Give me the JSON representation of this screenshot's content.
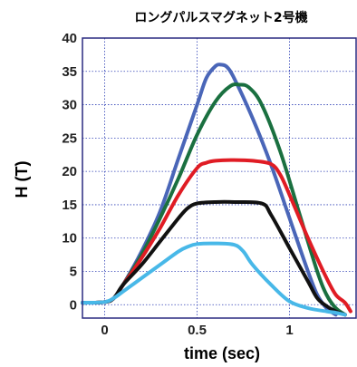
{
  "chart_data": {
    "type": "line",
    "title": "ロングパルスマグネット2号機",
    "xlabel": "time (sec)",
    "ylabel": "H (T)",
    "xlim": [
      -0.12,
      1.36
    ],
    "ylim": [
      -2,
      40
    ],
    "xticks": [
      "0",
      "0.5",
      "1"
    ],
    "xtick_values": [
      0,
      0.5,
      1
    ],
    "yticks": [
      "0",
      "5",
      "10",
      "15",
      "20",
      "25",
      "30",
      "35",
      "40"
    ],
    "ytick_values": [
      0,
      5,
      10,
      15,
      20,
      25,
      30,
      35,
      40
    ],
    "grid": true,
    "series": [
      {
        "color": "#4a66b8",
        "x": [
          -0.12,
          0,
          0.05,
          0.1,
          0.2,
          0.3,
          0.4,
          0.5,
          0.55,
          0.6,
          0.63,
          0.66,
          0.7,
          0.8,
          0.9,
          1.0,
          1.1,
          1.15,
          1.2,
          1.25
        ],
        "y": [
          0.3,
          0.4,
          1.0,
          3.0,
          8.0,
          14.0,
          22.0,
          30.0,
          34.0,
          35.8,
          36.0,
          35.7,
          34.0,
          28.0,
          21.0,
          13.0,
          5.0,
          1.5,
          -0.5,
          -1.5
        ]
      },
      {
        "color": "#1a7040",
        "x": [
          -0.12,
          0,
          0.05,
          0.1,
          0.2,
          0.3,
          0.4,
          0.5,
          0.6,
          0.68,
          0.73,
          0.78,
          0.85,
          0.95,
          1.05,
          1.15,
          1.2,
          1.25,
          1.3
        ],
        "y": [
          0.3,
          0.4,
          1.0,
          3.0,
          7.5,
          13.0,
          19.0,
          25.5,
          30.5,
          32.8,
          33.0,
          32.6,
          30.0,
          23.0,
          14.0,
          5.0,
          1.5,
          -0.5,
          -1.5
        ]
      },
      {
        "color": "#e01c24",
        "x": [
          -0.12,
          0,
          0.05,
          0.1,
          0.2,
          0.3,
          0.4,
          0.5,
          0.55,
          0.6,
          0.7,
          0.8,
          0.9,
          0.95,
          1.0,
          1.1,
          1.2,
          1.25,
          1.3,
          1.33
        ],
        "y": [
          0.3,
          0.4,
          1.0,
          3.0,
          7.0,
          11.5,
          16.5,
          20.5,
          21.3,
          21.6,
          21.7,
          21.6,
          21.1,
          19.5,
          16.5,
          10.0,
          4.0,
          1.5,
          0.3,
          -1.0
        ]
      },
      {
        "color": "#111111",
        "x": [
          -0.12,
          0,
          0.05,
          0.1,
          0.2,
          0.3,
          0.4,
          0.45,
          0.5,
          0.6,
          0.7,
          0.85,
          0.9,
          1.0,
          1.1,
          1.15,
          1.2,
          1.25,
          1.3
        ],
        "y": [
          0.3,
          0.4,
          1.0,
          3.0,
          6.0,
          9.5,
          13.0,
          14.5,
          15.2,
          15.4,
          15.4,
          15.2,
          13.5,
          8.5,
          3.5,
          1.0,
          -0.2,
          -1.0,
          -1.5
        ]
      },
      {
        "color": "#48b8e8",
        "x": [
          -0.12,
          0,
          0.05,
          0.1,
          0.2,
          0.3,
          0.4,
          0.45,
          0.5,
          0.6,
          0.7,
          0.75,
          0.8,
          0.9,
          1.0,
          1.1,
          1.2,
          1.25,
          1.3
        ],
        "y": [
          0.3,
          0.4,
          1.0,
          2.0,
          4.0,
          6.0,
          8.0,
          8.7,
          9.1,
          9.2,
          9.0,
          8.0,
          6.0,
          3.0,
          0.5,
          -0.5,
          -1.0,
          -1.2,
          -1.5
        ]
      }
    ]
  }
}
